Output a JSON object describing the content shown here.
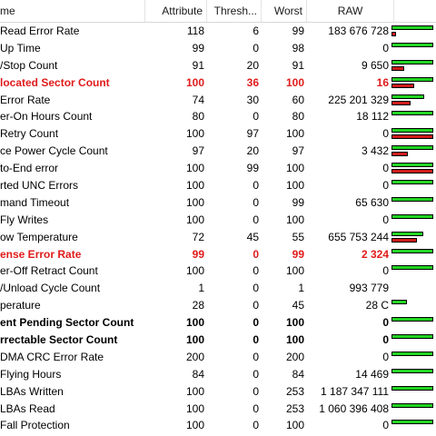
{
  "columns": {
    "name": "me",
    "attribute": "Attribute",
    "threshold": "Thresh...",
    "worst": "Worst",
    "raw": "RAW"
  },
  "colors": {
    "good": "#22d422",
    "bad": "#cf1a1a",
    "warning_text": "#e01b1b"
  },
  "rows": [
    {
      "name": "Read Error Rate",
      "attribute": "118",
      "threshold": "6",
      "worst": "99",
      "raw": "183 676 728",
      "style": "normal",
      "health": 1.0,
      "risk": 0.1
    },
    {
      "name": "Up Time",
      "attribute": "99",
      "threshold": "0",
      "worst": "98",
      "raw": "0",
      "style": "normal",
      "health": 1.0,
      "risk": 0
    },
    {
      "name": "/Stop Count",
      "attribute": "91",
      "threshold": "20",
      "worst": "91",
      "raw": "9 650",
      "style": "normal",
      "health": 1.0,
      "risk": 0.3
    },
    {
      "name": "located Sector Count",
      "attribute": "100",
      "threshold": "36",
      "worst": "100",
      "raw": "16",
      "style": "warn",
      "health": 1.0,
      "risk": 0.55
    },
    {
      "name": "Error Rate",
      "attribute": "74",
      "threshold": "30",
      "worst": "60",
      "raw": "225 201 329",
      "style": "normal",
      "health": 0.78,
      "risk": 0.45
    },
    {
      "name": "er-On Hours Count",
      "attribute": "80",
      "threshold": "0",
      "worst": "80",
      "raw": "18 112",
      "style": "normal",
      "health": 1.0,
      "risk": 0
    },
    {
      "name": "Retry Count",
      "attribute": "100",
      "threshold": "97",
      "worst": "100",
      "raw": "0",
      "style": "normal",
      "health": 1.0,
      "risk": 1.0
    },
    {
      "name": "ce Power Cycle Count",
      "attribute": "97",
      "threshold": "20",
      "worst": "97",
      "raw": "3 432",
      "style": "normal",
      "health": 1.0,
      "risk": 0.4
    },
    {
      "name": "to-End error",
      "attribute": "100",
      "threshold": "99",
      "worst": "100",
      "raw": "0",
      "style": "normal",
      "health": 1.0,
      "risk": 1.0
    },
    {
      "name": "rted UNC Errors",
      "attribute": "100",
      "threshold": "0",
      "worst": "100",
      "raw": "0",
      "style": "normal",
      "health": 1.0,
      "risk": 0
    },
    {
      "name": "mand Timeout",
      "attribute": "100",
      "threshold": "0",
      "worst": "99",
      "raw": "65 630",
      "style": "normal",
      "health": 1.0,
      "risk": 0
    },
    {
      "name": "Fly Writes",
      "attribute": "100",
      "threshold": "0",
      "worst": "100",
      "raw": "0",
      "style": "normal",
      "health": 1.0,
      "risk": 0
    },
    {
      "name": "ow Temperature",
      "attribute": "72",
      "threshold": "45",
      "worst": "55",
      "raw": "655 753 244",
      "style": "normal",
      "health": 0.75,
      "risk": 0.6
    },
    {
      "name": "ense Error Rate",
      "attribute": "99",
      "threshold": "0",
      "worst": "99",
      "raw": "2 324",
      "style": "warn",
      "health": 1.0,
      "risk": 0
    },
    {
      "name": "er-Off Retract Count",
      "attribute": "100",
      "threshold": "0",
      "worst": "100",
      "raw": "0",
      "style": "normal",
      "health": 1.0,
      "risk": 0
    },
    {
      "name": "/Unload Cycle Count",
      "attribute": "1",
      "threshold": "0",
      "worst": "1",
      "raw": "993 779",
      "style": "normal",
      "health": 0,
      "risk": 0
    },
    {
      "name": "perature",
      "attribute": "28",
      "threshold": "0",
      "worst": "45",
      "raw": "28 C",
      "style": "normal",
      "health": 0.38,
      "risk": 0
    },
    {
      "name": "ent Pending Sector Count",
      "attribute": "100",
      "threshold": "0",
      "worst": "100",
      "raw": "0",
      "style": "bold",
      "health": 1.0,
      "risk": 0
    },
    {
      "name": "rrectable Sector Count",
      "attribute": "100",
      "threshold": "0",
      "worst": "100",
      "raw": "0",
      "style": "bold",
      "health": 1.0,
      "risk": 0
    },
    {
      "name": "DMA CRC Error Rate",
      "attribute": "200",
      "threshold": "0",
      "worst": "200",
      "raw": "0",
      "style": "normal",
      "health": 1.0,
      "risk": 0
    },
    {
      "name": "Flying Hours",
      "attribute": "84",
      "threshold": "0",
      "worst": "84",
      "raw": "14 469",
      "style": "normal",
      "health": 1.0,
      "risk": 0
    },
    {
      "name": "LBAs Written",
      "attribute": "100",
      "threshold": "0",
      "worst": "253",
      "raw": "1 187 347 111",
      "style": "normal",
      "health": 1.0,
      "risk": 0
    },
    {
      "name": "LBAs Read",
      "attribute": "100",
      "threshold": "0",
      "worst": "253",
      "raw": "1 060 396 408",
      "style": "normal",
      "health": 1.0,
      "risk": 0
    },
    {
      "name": "Fall Protection",
      "attribute": "100",
      "threshold": "0",
      "worst": "100",
      "raw": "0",
      "style": "normal",
      "health": 1.0,
      "risk": 0
    }
  ]
}
